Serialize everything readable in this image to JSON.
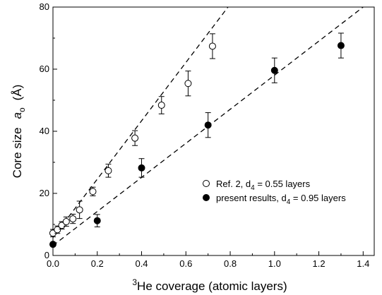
{
  "chart_data": {
    "type": "scatter",
    "title": "",
    "ylabel": "Core size",
    "ylabel_symbol": "a",
    "ylabel_subscript": "o",
    "ylabel_unit": "(Å)",
    "xlabel_sup": "3",
    "xlabel": "He coverage  (atomic layers)",
    "xlim": [
      0.0,
      1.45
    ],
    "ylim": [
      0,
      80
    ],
    "xticks": [
      0.0,
      0.2,
      0.4,
      0.6,
      0.8,
      1.0,
      1.2,
      1.4
    ],
    "xtick_labels": [
      "0.0",
      "0.2",
      "0.4",
      "0.6",
      "0.8",
      "1.0",
      "1.2",
      "1.4"
    ],
    "yticks": [
      0,
      20,
      40,
      60,
      80
    ],
    "ytick_labels": [
      "0",
      "20",
      "40",
      "60",
      "80"
    ],
    "grid": false,
    "legend_position": "lower-right",
    "series": [
      {
        "name": "Ref. 2, d4 = 0.55 layers",
        "legend_prefix": "Ref. 2, d",
        "legend_sub": "4",
        "legend_suffix": " = 0.55 layers",
        "marker": "open-circle",
        "color": "#000000",
        "points": [
          {
            "x": 0.0,
            "y": 7.2,
            "err": 1.2
          },
          {
            "x": 0.02,
            "y": 8.3,
            "err": 1.2
          },
          {
            "x": 0.04,
            "y": 9.7,
            "err": 1.2
          },
          {
            "x": 0.06,
            "y": 10.9,
            "err": 1.5
          },
          {
            "x": 0.09,
            "y": 11.8,
            "err": 1.5
          },
          {
            "x": 0.12,
            "y": 14.7,
            "err": 2.8
          },
          {
            "x": 0.18,
            "y": 20.6,
            "err": 1.4
          },
          {
            "x": 0.25,
            "y": 27.3,
            "err": 2.1
          },
          {
            "x": 0.37,
            "y": 37.8,
            "err": 2.4
          },
          {
            "x": 0.49,
            "y": 48.4,
            "err": 2.8
          },
          {
            "x": 0.61,
            "y": 55.4,
            "err": 4.0
          },
          {
            "x": 0.72,
            "y": 67.4,
            "err": 4.0
          }
        ]
      },
      {
        "name": "present results, d4 = 0.95 layers",
        "legend_prefix": "present results, d",
        "legend_sub": "4",
        "legend_suffix": " = 0.95 layers",
        "marker": "filled-circle",
        "color": "#000000",
        "points": [
          {
            "x": 0.0,
            "y": 3.6,
            "err": 0
          },
          {
            "x": 0.2,
            "y": 11.2,
            "err": 2.0
          },
          {
            "x": 0.4,
            "y": 28.2,
            "err": 3.0
          },
          {
            "x": 0.7,
            "y": 42.0,
            "err": 4.0
          },
          {
            "x": 1.0,
            "y": 59.6,
            "err": 4.0
          },
          {
            "x": 1.3,
            "y": 67.6,
            "err": 4.0
          }
        ]
      }
    ],
    "fit_lines": [
      {
        "style": "dashed",
        "from": [
          0.0,
          5.8
        ],
        "to": [
          0.79,
          80
        ]
      },
      {
        "style": "dashed",
        "from": [
          0.0,
          3.2
        ],
        "to": [
          1.4,
          80
        ]
      }
    ]
  }
}
